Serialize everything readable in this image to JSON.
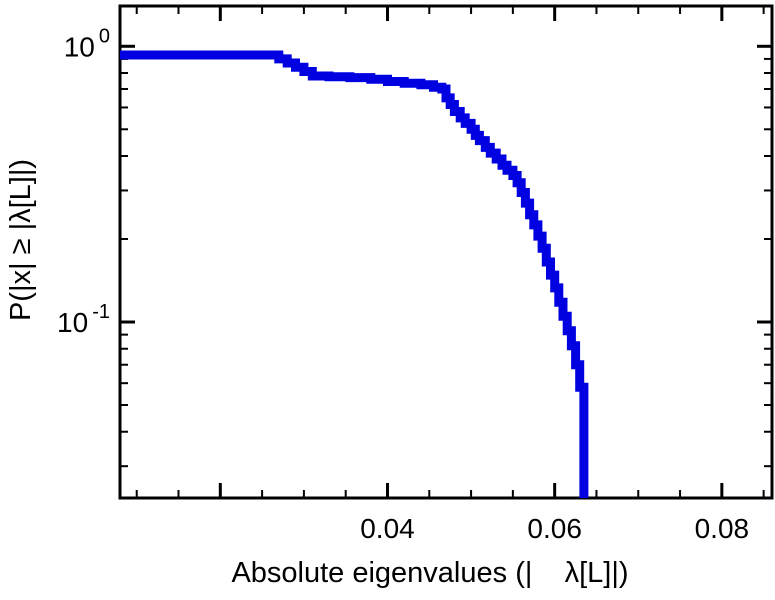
{
  "chart_data": {
    "type": "line",
    "subtype": "step-ccdf",
    "title": "",
    "xlabel": "Absolute eigenvalues (|    λ[L]|)",
    "ylabel": "P(|x| ≥ |λ[L]|)",
    "x_scale": "linear",
    "y_scale": "log",
    "xlim": [
      0.008,
      0.086
    ],
    "ylim": [
      0.023,
      1.4
    ],
    "grid": false,
    "legend": null,
    "line_color": "#0000e0",
    "line_width": 9,
    "x_ticks_major": [
      0.02,
      0.04,
      0.06,
      0.08
    ],
    "x_tick_labels": [
      {
        "value": 0.04,
        "label": "0.04"
      },
      {
        "value": 0.06,
        "label": "0.06"
      },
      {
        "value": 0.08,
        "label": "0.08"
      }
    ],
    "x_ticks_minor_start": 0.01,
    "x_ticks_minor_end": 0.085,
    "x_ticks_minor_step": 0.005,
    "y_ticks_major": [
      {
        "value": 1.0,
        "label_base": "10",
        "label_exp": "0"
      },
      {
        "value": 0.1,
        "label_base": "10",
        "label_exp": "-1"
      }
    ],
    "y_ticks_minor": [
      0.9,
      0.8,
      0.7,
      0.6,
      0.5,
      0.4,
      0.3,
      0.2,
      0.09,
      0.08,
      0.07,
      0.06,
      0.05,
      0.04,
      0.03
    ],
    "points": [
      [
        0.008,
        0.93
      ],
      [
        0.027,
        0.9
      ],
      [
        0.028,
        0.87
      ],
      [
        0.029,
        0.84
      ],
      [
        0.03,
        0.81
      ],
      [
        0.031,
        0.78
      ],
      [
        0.033,
        0.775
      ],
      [
        0.0355,
        0.77
      ],
      [
        0.038,
        0.76
      ],
      [
        0.04,
        0.745
      ],
      [
        0.042,
        0.735
      ],
      [
        0.044,
        0.725
      ],
      [
        0.0455,
        0.71
      ],
      [
        0.0465,
        0.7
      ],
      [
        0.047,
        0.65
      ],
      [
        0.0475,
        0.615
      ],
      [
        0.048,
        0.58
      ],
      [
        0.0487,
        0.55
      ],
      [
        0.0493,
        0.525
      ],
      [
        0.05,
        0.5
      ],
      [
        0.0505,
        0.475
      ],
      [
        0.051,
        0.455
      ],
      [
        0.0517,
        0.43
      ],
      [
        0.0523,
        0.41
      ],
      [
        0.053,
        0.39
      ],
      [
        0.0537,
        0.37
      ],
      [
        0.0543,
        0.355
      ],
      [
        0.055,
        0.34
      ],
      [
        0.0555,
        0.32
      ],
      [
        0.056,
        0.295
      ],
      [
        0.0565,
        0.27
      ],
      [
        0.057,
        0.245
      ],
      [
        0.0575,
        0.225
      ],
      [
        0.058,
        0.205
      ],
      [
        0.0585,
        0.185
      ],
      [
        0.059,
        0.165
      ],
      [
        0.0595,
        0.148
      ],
      [
        0.06,
        0.133
      ],
      [
        0.0605,
        0.118
      ],
      [
        0.061,
        0.105
      ],
      [
        0.0615,
        0.093
      ],
      [
        0.062,
        0.082
      ],
      [
        0.0625,
        0.07
      ],
      [
        0.063,
        0.058
      ],
      [
        0.0635,
        0.018
      ]
    ]
  }
}
